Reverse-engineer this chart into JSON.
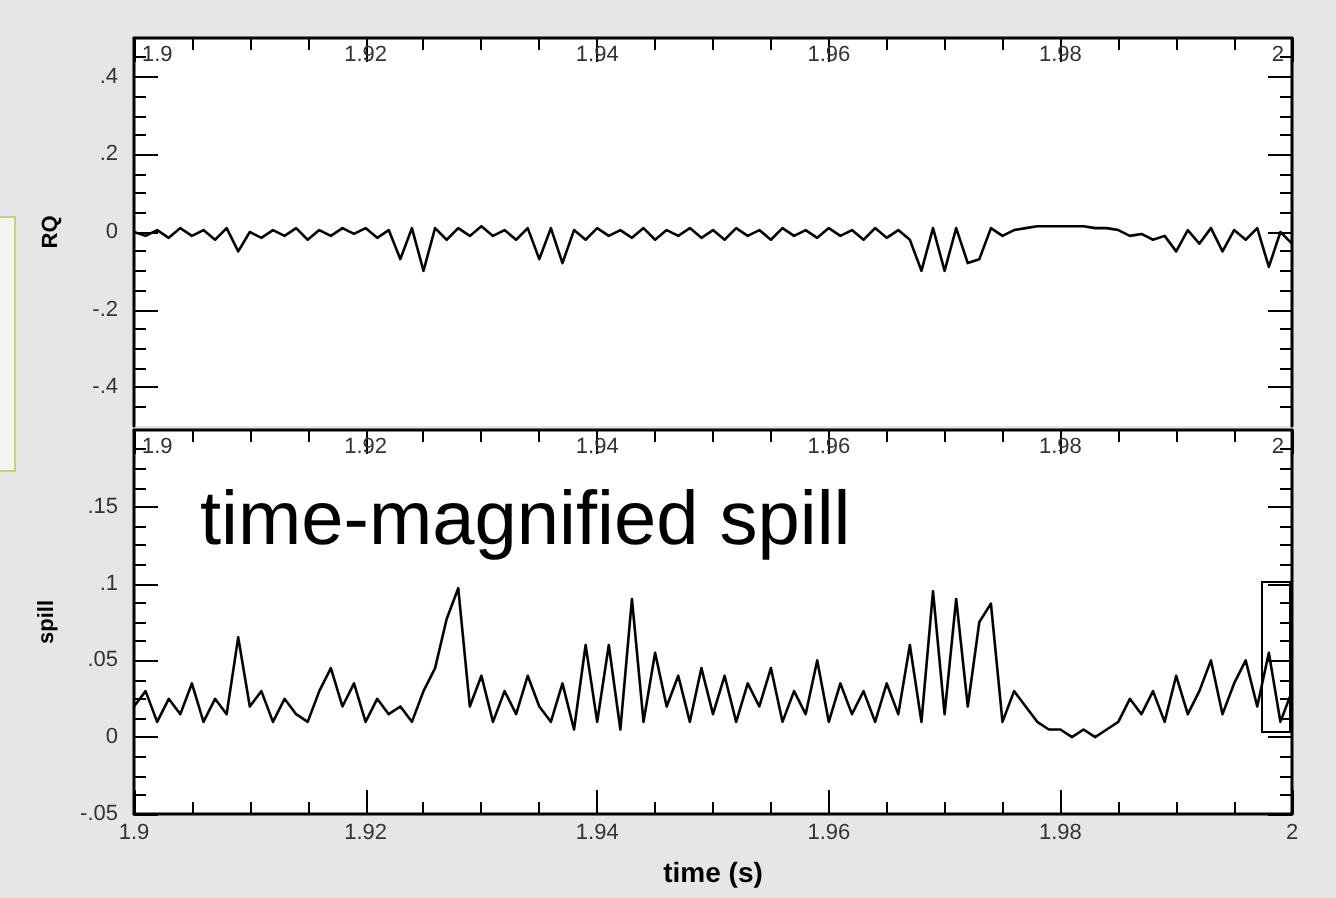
{
  "chart_data": [
    {
      "type": "line",
      "ylabel": "RQ",
      "xlim": [
        1.9,
        2
      ],
      "xticks": [
        1.9,
        1.92,
        1.94,
        1.96,
        1.98,
        2
      ],
      "ylim": [
        -0.5,
        0.5
      ],
      "yticks": [
        {
          "value": -0.4,
          "label": "-.4"
        },
        {
          "value": -0.2,
          "label": "-.2"
        },
        0,
        {
          "value": 0.2,
          "label": ".2"
        },
        {
          "value": 0.4,
          "label": ".4"
        }
      ],
      "grid": false,
      "marker": "none",
      "line_style": "solid",
      "x": [
        1.9,
        1.901,
        1.902,
        1.903,
        1.904,
        1.905,
        1.906,
        1.907,
        1.908,
        1.909,
        1.91,
        1.911,
        1.912,
        1.913,
        1.914,
        1.915,
        1.916,
        1.917,
        1.918,
        1.919,
        1.92,
        1.921,
        1.922,
        1.923,
        1.924,
        1.925,
        1.926,
        1.927,
        1.928,
        1.929,
        1.93,
        1.931,
        1.932,
        1.933,
        1.934,
        1.935,
        1.936,
        1.937,
        1.938,
        1.939,
        1.94,
        1.941,
        1.942,
        1.943,
        1.944,
        1.945,
        1.946,
        1.947,
        1.948,
        1.949,
        1.95,
        1.951,
        1.952,
        1.953,
        1.954,
        1.955,
        1.956,
        1.957,
        1.958,
        1.959,
        1.96,
        1.961,
        1.962,
        1.963,
        1.964,
        1.965,
        1.966,
        1.967,
        1.968,
        1.969,
        1.97,
        1.971,
        1.972,
        1.973,
        1.974,
        1.975,
        1.976,
        1.977,
        1.978,
        1.979,
        1.98,
        1.981,
        1.982,
        1.983,
        1.984,
        1.985,
        1.986,
        1.987,
        1.988,
        1.989,
        1.99,
        1.991,
        1.992,
        1.993,
        1.994,
        1.995,
        1.996,
        1.997,
        1.998,
        1.999,
        2
      ],
      "series": [
        {
          "color": "#000000",
          "values": [
            0,
            -0.01,
            0.005,
            -0.015,
            0.01,
            -0.01,
            0.005,
            -0.02,
            0.01,
            -0.05,
            0,
            -0.015,
            0.005,
            -0.01,
            0.01,
            -0.02,
            0.005,
            -0.01,
            0.01,
            -0.005,
            0.01,
            -0.015,
            0.005,
            -0.07,
            0.01,
            -0.1,
            0.01,
            -0.02,
            0.01,
            -0.01,
            0.015,
            -0.01,
            0.005,
            -0.02,
            0.01,
            -0.07,
            0.01,
            -0.08,
            0.005,
            -0.02,
            0.01,
            -0.01,
            0.005,
            -0.015,
            0.01,
            -0.02,
            0.005,
            -0.01,
            0.01,
            -0.015,
            0.005,
            -0.02,
            0.01,
            -0.01,
            0.005,
            -0.02,
            0.01,
            -0.01,
            0.005,
            -0.015,
            0.01,
            -0.01,
            0.005,
            -0.02,
            0.01,
            -0.015,
            0.005,
            -0.02,
            -0.1,
            0.01,
            -0.1,
            0.01,
            -0.08,
            -0.07,
            0.01,
            -0.01,
            0.005,
            0.01,
            0.015,
            0.015,
            0.015,
            0.015,
            0.015,
            0.01,
            0.01,
            0.005,
            -0.01,
            -0.005,
            -0.02,
            -0.01,
            -0.05,
            0.005,
            -0.03,
            0.01,
            -0.05,
            0.005,
            -0.02,
            0.01,
            -0.09,
            0,
            -0.03
          ]
        }
      ]
    },
    {
      "type": "line",
      "ylabel": "spill",
      "xlabel": "time (s)",
      "xlim": [
        1.9,
        2
      ],
      "xticks": [
        1.9,
        1.92,
        1.94,
        1.96,
        1.98,
        2
      ],
      "x2lim": [
        1.9,
        2
      ],
      "x2ticks": [
        1.9,
        1.92,
        1.94,
        1.96,
        1.98,
        2
      ],
      "ylim": [
        -0.05,
        0.2
      ],
      "yticks": [
        {
          "value": -0.05,
          "label": "-.05"
        },
        0,
        {
          "value": 0.05,
          "label": ".05"
        },
        {
          "value": 0.1,
          "label": ".1"
        },
        {
          "value": 0.15,
          "label": ".15"
        }
      ],
      "grid": false,
      "marker": "none",
      "line_style": "solid",
      "annotations": [
        "time-magnified spill"
      ],
      "x": [
        1.9,
        1.901,
        1.902,
        1.903,
        1.904,
        1.905,
        1.906,
        1.907,
        1.908,
        1.909,
        1.91,
        1.911,
        1.912,
        1.913,
        1.914,
        1.915,
        1.916,
        1.917,
        1.918,
        1.919,
        1.92,
        1.921,
        1.922,
        1.923,
        1.924,
        1.925,
        1.926,
        1.927,
        1.928,
        1.929,
        1.93,
        1.931,
        1.932,
        1.933,
        1.934,
        1.935,
        1.936,
        1.937,
        1.938,
        1.939,
        1.94,
        1.941,
        1.942,
        1.943,
        1.944,
        1.945,
        1.946,
        1.947,
        1.948,
        1.949,
        1.95,
        1.951,
        1.952,
        1.953,
        1.954,
        1.955,
        1.956,
        1.957,
        1.958,
        1.959,
        1.96,
        1.961,
        1.962,
        1.963,
        1.964,
        1.965,
        1.966,
        1.967,
        1.968,
        1.969,
        1.97,
        1.971,
        1.972,
        1.973,
        1.974,
        1.975,
        1.976,
        1.977,
        1.978,
        1.979,
        1.98,
        1.981,
        1.982,
        1.983,
        1.984,
        1.985,
        1.986,
        1.987,
        1.988,
        1.989,
        1.99,
        1.991,
        1.992,
        1.993,
        1.994,
        1.995,
        1.996,
        1.997,
        1.998,
        1.999,
        2
      ],
      "series": [
        {
          "color": "#000000",
          "values": [
            0.02,
            0.03,
            0.01,
            0.025,
            0.015,
            0.035,
            0.01,
            0.025,
            0.015,
            0.065,
            0.02,
            0.03,
            0.01,
            0.025,
            0.015,
            0.01,
            0.03,
            0.045,
            0.02,
            0.035,
            0.01,
            0.025,
            0.015,
            0.02,
            0.01,
            0.03,
            0.045,
            0.077,
            0.097,
            0.02,
            0.04,
            0.01,
            0.03,
            0.015,
            0.04,
            0.02,
            0.01,
            0.035,
            0.005,
            0.06,
            0.01,
            0.06,
            0.005,
            0.09,
            0.01,
            0.055,
            0.02,
            0.04,
            0.01,
            0.045,
            0.015,
            0.04,
            0.01,
            0.035,
            0.02,
            0.045,
            0.01,
            0.03,
            0.015,
            0.05,
            0.01,
            0.035,
            0.015,
            0.03,
            0.01,
            0.035,
            0.015,
            0.06,
            0.01,
            0.095,
            0.015,
            0.09,
            0.02,
            0.075,
            0.087,
            0.01,
            0.03,
            0.02,
            0.01,
            0.005,
            0.005,
            0,
            0.005,
            0,
            0.005,
            0.01,
            0.025,
            0.015,
            0.03,
            0.01,
            0.04,
            0.015,
            0.03,
            0.05,
            0.015,
            0.035,
            0.05,
            0.02,
            0.055,
            0.01,
            0.03
          ]
        }
      ]
    }
  ]
}
